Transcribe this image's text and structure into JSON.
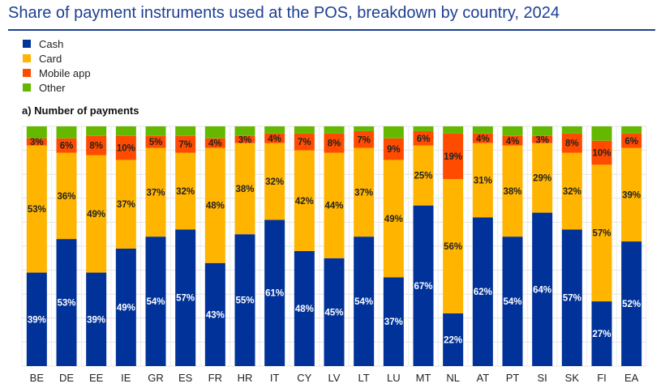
{
  "title": "Share of payment instruments used at the POS, breakdown by country, 2024",
  "chart_data": {
    "type": "bar",
    "stacked": true,
    "title": "Share of payment instruments used at the POS, breakdown by country, 2024",
    "subtitle": "a) Number of payments",
    "xlabel": "",
    "ylabel": "",
    "ylim": [
      0,
      100
    ],
    "grid": true,
    "legend_position": "top-left",
    "categories": [
      "BE",
      "DE",
      "EE",
      "IE",
      "GR",
      "ES",
      "FR",
      "HR",
      "IT",
      "CY",
      "LV",
      "LT",
      "LU",
      "MT",
      "NL",
      "AT",
      "PT",
      "SI",
      "SK",
      "FI",
      "EA"
    ],
    "series": [
      {
        "name": "Cash",
        "color": "#003299",
        "label_color": "#ffffff",
        "values": [
          39,
          53,
          39,
          49,
          54,
          57,
          43,
          55,
          61,
          48,
          45,
          54,
          37,
          67,
          22,
          62,
          54,
          64,
          57,
          27,
          52
        ]
      },
      {
        "name": "Card",
        "color": "#ffb400",
        "label_color": "#222222",
        "values": [
          53,
          36,
          49,
          37,
          37,
          32,
          48,
          38,
          32,
          42,
          44,
          37,
          49,
          25,
          56,
          31,
          38,
          29,
          32,
          57,
          39
        ]
      },
      {
        "name": "Mobile app",
        "color": "#ff4b00",
        "label_color": "#222222",
        "values": [
          3,
          6,
          8,
          10,
          5,
          7,
          4,
          3,
          4,
          7,
          8,
          7,
          9,
          6,
          19,
          4,
          4,
          3,
          8,
          10,
          6
        ]
      },
      {
        "name": "Other",
        "color": "#65b800",
        "label_color": null,
        "values": [
          5,
          5,
          4,
          4,
          4,
          4,
          5,
          4,
          3,
          3,
          3,
          2,
          5,
          2,
          3,
          3,
          4,
          4,
          3,
          6,
          3
        ]
      }
    ]
  }
}
